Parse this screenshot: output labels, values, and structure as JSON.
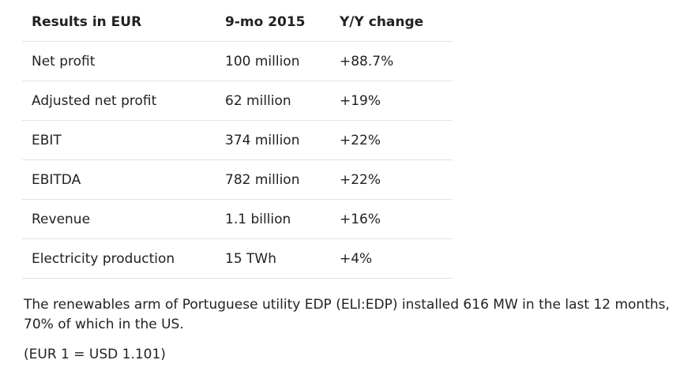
{
  "table": {
    "headers": [
      "Results in EUR",
      "9-mo 2015",
      "Y/Y change"
    ],
    "rows": [
      {
        "metric": "Net profit",
        "value": "100 million",
        "change": "+88.7%"
      },
      {
        "metric": "Adjusted net profit",
        "value": "62 million",
        "change": "+19%"
      },
      {
        "metric": "EBIT",
        "value": "374 million",
        "change": "+22%"
      },
      {
        "metric": "EBITDA",
        "value": "782 million",
        "change": "+22%"
      },
      {
        "metric": "Revenue",
        "value": "1.1 billion",
        "change": "+16%"
      },
      {
        "metric": "Electricity production",
        "value": "15 TWh",
        "change": "+4%"
      }
    ]
  },
  "body_text": "The renewables arm of Portuguese utility EDP (ELI:EDP) installed 616 MW in the last 12 months, 70% of which in the US.",
  "exchange_rate_note": "(EUR 1 = USD 1.101)"
}
